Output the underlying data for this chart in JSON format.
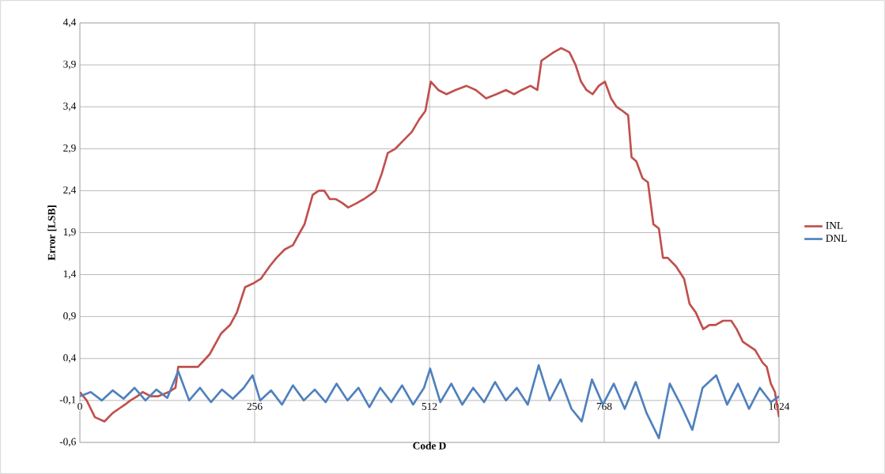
{
  "chart_data": {
    "type": "line",
    "xlabel": "Code D",
    "ylabel": "Error [LSB]",
    "xlim": [
      0,
      1024
    ],
    "ylim": [
      -0.6,
      4.4
    ],
    "xticks": [
      0,
      256,
      512,
      768,
      1024
    ],
    "yticks": [
      {
        "value": -0.6,
        "label": "-0,6"
      },
      {
        "value": -0.1,
        "label": "-0,1"
      },
      {
        "value": 0.4,
        "label": "0,4"
      },
      {
        "value": 0.9,
        "label": "0,9"
      },
      {
        "value": 1.4,
        "label": "1,4"
      },
      {
        "value": 1.9,
        "label": "1,9"
      },
      {
        "value": 2.4,
        "label": "2,4"
      },
      {
        "value": 2.9,
        "label": "2,9"
      },
      {
        "value": 3.4,
        "label": "3,4"
      },
      {
        "value": 3.9,
        "label": "3,9"
      },
      {
        "value": 4.4,
        "label": "4,4"
      }
    ],
    "grid": true,
    "legend": "right",
    "series": [
      {
        "name": "INL",
        "color": "#c0504d",
        "x": [
          0,
          10,
          22,
          36,
          48,
          57,
          66,
          74,
          84,
          92,
          104,
          115,
          130,
          140,
          144,
          160,
          173,
          190,
          207,
          220,
          230,
          242,
          255,
          265,
          278,
          288,
          300,
          312,
          322,
          329,
          341,
          350,
          358,
          366,
          375,
          385,
          393,
          405,
          416,
          425,
          433,
          442,
          451,
          462,
          474,
          486,
          497,
          506,
          514,
          525,
          537,
          550,
          566,
          580,
          595,
          610,
          624,
          636,
          647,
          660,
          670,
          676,
          685,
          694,
          705,
          717,
          726,
          734,
          742,
          751,
          760,
          769,
          778,
          786,
          795,
          803,
          808,
          815,
          824,
          832,
          840,
          848,
          854,
          861,
          873,
          885,
          893,
          902,
          913,
          922,
          931,
          942,
          954,
          962,
          971,
          980,
          989,
          1000,
          1006,
          1012,
          1018,
          1024
        ],
        "values": [
          0.0,
          -0.1,
          -0.3,
          -0.35,
          -0.25,
          -0.2,
          -0.15,
          -0.1,
          -0.05,
          0.0,
          -0.05,
          -0.05,
          0.0,
          0.05,
          0.3,
          0.3,
          0.3,
          0.45,
          0.7,
          0.8,
          0.95,
          1.25,
          1.3,
          1.35,
          1.5,
          1.6,
          1.7,
          1.75,
          1.9,
          2.0,
          2.35,
          2.4,
          2.4,
          2.3,
          2.3,
          2.25,
          2.2,
          2.25,
          2.3,
          2.35,
          2.4,
          2.6,
          2.85,
          2.9,
          3.0,
          3.1,
          3.25,
          3.35,
          3.7,
          3.6,
          3.55,
          3.6,
          3.65,
          3.6,
          3.5,
          3.55,
          3.6,
          3.55,
          3.6,
          3.65,
          3.6,
          3.95,
          4.0,
          4.05,
          4.1,
          4.05,
          3.9,
          3.7,
          3.6,
          3.55,
          3.65,
          3.7,
          3.5,
          3.4,
          3.35,
          3.3,
          2.8,
          2.75,
          2.55,
          2.5,
          2.0,
          1.95,
          1.6,
          1.6,
          1.5,
          1.35,
          1.05,
          0.95,
          0.75,
          0.8,
          0.8,
          0.85,
          0.85,
          0.75,
          0.6,
          0.55,
          0.5,
          0.35,
          0.3,
          0.1,
          0.0,
          -0.3
        ]
      },
      {
        "name": "DNL",
        "color": "#4f81bd",
        "x": [
          0,
          16,
          32,
          48,
          64,
          80,
          96,
          112,
          128,
          144,
          160,
          176,
          192,
          208,
          224,
          240,
          253,
          264,
          280,
          296,
          312,
          328,
          344,
          360,
          376,
          392,
          408,
          424,
          440,
          456,
          472,
          488,
          504,
          513,
          528,
          544,
          560,
          576,
          592,
          608,
          624,
          640,
          656,
          672,
          688,
          704,
          720,
          735,
          750,
          766,
          782,
          798,
          814,
          830,
          848,
          864,
          880,
          897,
          912,
          932,
          948,
          964,
          980,
          996,
          1012,
          1024
        ],
        "values": [
          -0.05,
          0.0,
          -0.1,
          0.02,
          -0.08,
          0.05,
          -0.1,
          0.03,
          -0.07,
          0.25,
          -0.1,
          0.05,
          -0.12,
          0.03,
          -0.08,
          0.05,
          0.2,
          -0.1,
          0.02,
          -0.15,
          0.08,
          -0.1,
          0.03,
          -0.12,
          0.1,
          -0.1,
          0.05,
          -0.18,
          0.05,
          -0.12,
          0.08,
          -0.15,
          0.05,
          0.28,
          -0.12,
          0.1,
          -0.15,
          0.05,
          -0.12,
          0.12,
          -0.1,
          0.05,
          -0.15,
          0.32,
          -0.1,
          0.15,
          -0.2,
          -0.35,
          0.15,
          -0.15,
          0.1,
          -0.2,
          0.12,
          -0.25,
          -0.55,
          0.1,
          -0.15,
          -0.45,
          0.05,
          0.2,
          -0.15,
          0.1,
          -0.2,
          0.05,
          -0.12,
          -0.05
        ]
      }
    ]
  }
}
